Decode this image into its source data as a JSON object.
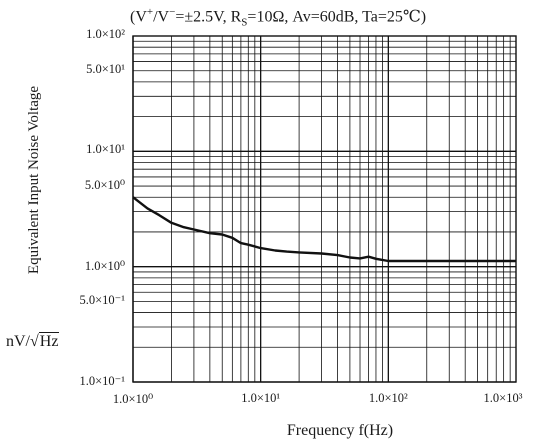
{
  "chart_data": {
    "type": "line",
    "conditions_title": {
      "prefix": "(V",
      "vplus_sup": "+",
      "mid1": "/V",
      "vminus_sup": "−",
      "mid2": "=±2.5V, R",
      "rs_sub": "S",
      "rest": "=10Ω, Av=60dB, Ta=25℃)"
    },
    "ylabel": "Equivalent Input Noise Voltage",
    "yunit_prefix": "nV/",
    "yunit_sqrt": "√",
    "yunit_hz": "Hz",
    "xlabel": "Frequency f(Hz)",
    "xscale": "log",
    "yscale": "log",
    "xlim": [
      1,
      1000
    ],
    "ylim": [
      0.1,
      100
    ],
    "grid": true,
    "ytick_labels": [
      {
        "value": 100,
        "label": "1.0×10²"
      },
      {
        "value": 50,
        "label": "5.0×10¹"
      },
      {
        "value": 10,
        "label": "1.0×10¹"
      },
      {
        "value": 5,
        "label": "5.0×10⁰"
      },
      {
        "value": 1,
        "label": "1.0×10⁰"
      },
      {
        "value": 0.5,
        "label": "5.0×10⁻¹"
      },
      {
        "value": 0.1,
        "label": "1.0×10⁻¹"
      }
    ],
    "xtick_labels": [
      {
        "value": 1,
        "label": "1.0×10⁰"
      },
      {
        "value": 10,
        "label": "1.0×10¹"
      },
      {
        "value": 100,
        "label": "1.0×10²"
      },
      {
        "value": 1000,
        "label": "1.0×10³"
      }
    ],
    "series": [
      {
        "color": "#111111",
        "x": [
          1,
          1.3,
          1.6,
          2,
          2.5,
          3,
          4,
          5,
          6,
          7,
          8,
          10,
          13,
          16,
          20,
          30,
          40,
          50,
          60,
          70,
          80,
          100,
          150,
          200,
          300,
          500,
          700,
          1000
        ],
        "y": [
          4.0,
          3.2,
          2.8,
          2.4,
          2.2,
          2.1,
          1.95,
          1.9,
          1.78,
          1.6,
          1.55,
          1.45,
          1.38,
          1.35,
          1.33,
          1.3,
          1.26,
          1.2,
          1.18,
          1.22,
          1.17,
          1.12,
          1.12,
          1.12,
          1.12,
          1.12,
          1.12,
          1.12
        ]
      }
    ]
  }
}
